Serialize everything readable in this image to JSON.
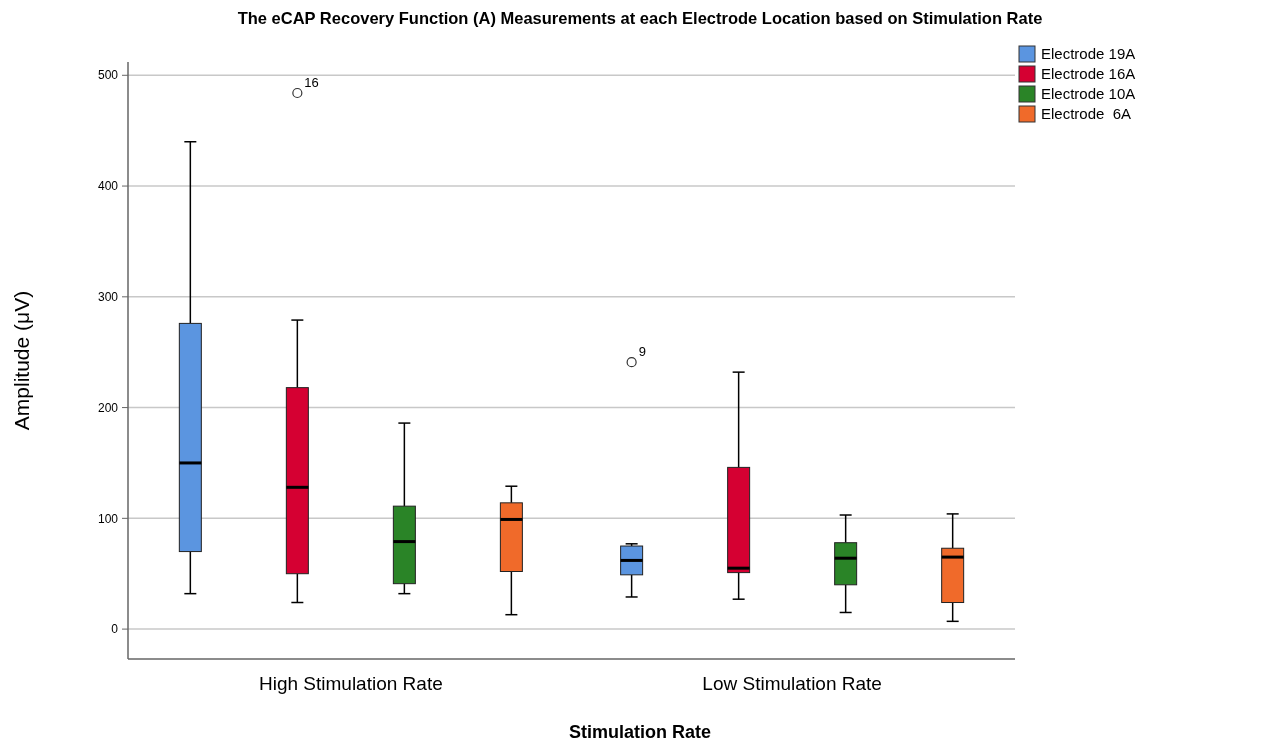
{
  "chart_data": {
    "type": "box",
    "title": "The eCAP Recovery Function (A) Measurements at each Electrode Location based on Stimulation Rate",
    "xlabel": "Stimulation Rate",
    "ylabel": "Amplitude (μV)",
    "categories": [
      "High Stimulation Rate",
      "Low Stimulation Rate"
    ],
    "series": [
      {
        "name": "Electrode 19A",
        "color": "#5b95e0",
        "boxes": [
          {
            "low": 32,
            "q1": 70,
            "median": 150,
            "q3": 276,
            "high": 440
          },
          {
            "low": 29,
            "q1": 49,
            "median": 62,
            "q3": 75,
            "high": 77,
            "outliers": [
              241
            ]
          }
        ]
      },
      {
        "name": "Electrode 16A",
        "color": "#d50032",
        "boxes": [
          {
            "low": 24,
            "q1": 50,
            "median": 128,
            "q3": 218,
            "high": 279,
            "outliers": [
              484
            ]
          },
          {
            "low": 27,
            "q1": 51,
            "median": 55,
            "q3": 146,
            "high": 232
          }
        ]
      },
      {
        "name": "Electrode 10A",
        "color": "#2a8427",
        "boxes": [
          {
            "low": 32,
            "q1": 41,
            "median": 79,
            "q3": 111,
            "high": 186
          },
          {
            "low": 15,
            "q1": 40,
            "median": 64,
            "q3": 78,
            "high": 103
          }
        ]
      },
      {
        "name": "Electrode  6A",
        "color": "#f06a2a",
        "boxes": [
          {
            "low": 13,
            "q1": 52,
            "median": 99,
            "q3": 114,
            "high": 129
          },
          {
            "low": 7,
            "q1": 24,
            "median": 65,
            "q3": 73,
            "high": 104
          }
        ]
      }
    ],
    "annotations": [
      "16",
      "9"
    ],
    "ylim": [
      -27,
      512
    ],
    "yticks": [
      0,
      100,
      200,
      300,
      400,
      500
    ],
    "grid": "y",
    "legend": "top right"
  }
}
